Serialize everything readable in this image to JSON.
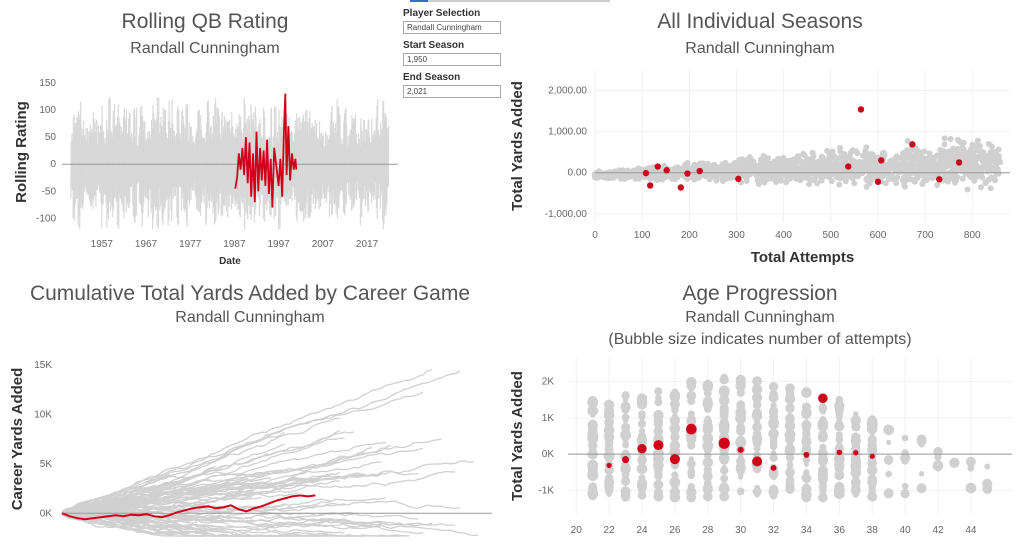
{
  "controls": {
    "player_label": "Player Selection",
    "player_value": "Randall Cunningham",
    "start_label": "Start Season",
    "start_value": "1,950",
    "end_label": "End Season",
    "end_value": "2,021",
    "accent_color": "#3b6cc4"
  },
  "colors": {
    "highlight": "#d0021b",
    "background_series": "#d0d0d0",
    "zero_line": "#999999"
  },
  "chart_data": [
    {
      "id": "rolling",
      "type": "line",
      "title": "Rolling QB Rating",
      "subtitle": "Randall Cunningham",
      "xlabel": "Date",
      "ylabel": "Rolling Rating",
      "xlim": [
        1948,
        2024
      ],
      "ylim": [
        -125,
        170
      ],
      "xticks": [
        "1957",
        "1967",
        "1977",
        "1987",
        "1997",
        "2007",
        "2017"
      ],
      "yticks": [
        "150",
        "100",
        "50",
        "0",
        "-50",
        "-100"
      ],
      "highlight_series": {
        "name": "Randall Cunningham",
        "points": [
          [
            1987.2,
            -45
          ],
          [
            1987.6,
            -25
          ],
          [
            1988.0,
            20
          ],
          [
            1988.4,
            -10
          ],
          [
            1988.8,
            30
          ],
          [
            1989.2,
            -20
          ],
          [
            1989.6,
            50
          ],
          [
            1990.0,
            -35
          ],
          [
            1990.4,
            40
          ],
          [
            1990.8,
            -60
          ],
          [
            1991.2,
            20
          ],
          [
            1991.6,
            -70
          ],
          [
            1992.0,
            60
          ],
          [
            1992.4,
            -50
          ],
          [
            1992.8,
            30
          ],
          [
            1993.2,
            -30
          ],
          [
            1993.6,
            25
          ],
          [
            1994.0,
            -40
          ],
          [
            1994.4,
            45
          ],
          [
            1994.8,
            -55
          ],
          [
            1995.2,
            10
          ],
          [
            1995.6,
            -80
          ],
          [
            1996.0,
            30
          ],
          [
            1997.0,
            -40
          ],
          [
            1997.4,
            10
          ],
          [
            1997.8,
            -60
          ],
          [
            1998.2,
            60
          ],
          [
            1998.5,
            130
          ],
          [
            1998.8,
            -20
          ],
          [
            1999.2,
            70
          ],
          [
            1999.6,
            -30
          ],
          [
            2000.0,
            20
          ],
          [
            2000.4,
            -10
          ],
          [
            2000.8,
            10
          ],
          [
            2001.0,
            -10
          ]
        ]
      }
    },
    {
      "id": "seasons",
      "type": "scatter",
      "title": "All Individual Seasons",
      "subtitle": "Randall Cunningham",
      "xlabel": "Total Attempts",
      "ylabel": "Total Yards Added",
      "xlim": [
        0,
        880
      ],
      "ylim": [
        -1200,
        2500
      ],
      "xticks": [
        0,
        100,
        200,
        300,
        400,
        500,
        600,
        700,
        800
      ],
      "yticks": [
        [
          "2,000.00",
          2000
        ],
        [
          "1,000.00",
          1000
        ],
        [
          "0.00",
          0
        ],
        [
          "-1,000.00",
          -1000
        ]
      ],
      "highlight_points": [
        [
          108,
          -10
        ],
        [
          117,
          -310
        ],
        [
          133,
          150
        ],
        [
          152,
          60
        ],
        [
          182,
          -360
        ],
        [
          196,
          -20
        ],
        [
          222,
          40
        ],
        [
          304,
          -150
        ],
        [
          537,
          150
        ],
        [
          564,
          1540
        ],
        [
          600,
          -220
        ],
        [
          607,
          300
        ],
        [
          673,
          690
        ],
        [
          730,
          -160
        ],
        [
          772,
          250
        ]
      ]
    },
    {
      "id": "cumulative",
      "type": "line",
      "title": "Cumulative Total Yards Added by Career Game",
      "subtitle": "Randall Cunningham",
      "xlabel": "",
      "ylabel": "Career Yards Added",
      "xlim": [
        0,
        280
      ],
      "ylim": [
        -2500,
        17500
      ],
      "yticks": [
        [
          "15K",
          15000
        ],
        [
          "10K",
          10000
        ],
        [
          "5K",
          5000
        ],
        [
          "0K",
          0
        ]
      ],
      "highlight_series": {
        "name": "Randall Cunningham",
        "points": [
          [
            0,
            0
          ],
          [
            5,
            -300
          ],
          [
            10,
            -500
          ],
          [
            15,
            -600
          ],
          [
            20,
            -500
          ],
          [
            25,
            -400
          ],
          [
            30,
            -300
          ],
          [
            35,
            -200
          ],
          [
            40,
            -300
          ],
          [
            45,
            -150
          ],
          [
            50,
            -200
          ],
          [
            55,
            -100
          ],
          [
            60,
            -300
          ],
          [
            65,
            -400
          ],
          [
            70,
            -200
          ],
          [
            75,
            100
          ],
          [
            80,
            300
          ],
          [
            85,
            500
          ],
          [
            90,
            600
          ],
          [
            95,
            700
          ],
          [
            100,
            500
          ],
          [
            105,
            600
          ],
          [
            110,
            800
          ],
          [
            115,
            400
          ],
          [
            120,
            200
          ],
          [
            125,
            500
          ],
          [
            130,
            700
          ],
          [
            135,
            1000
          ],
          [
            140,
            1300
          ],
          [
            145,
            1500
          ],
          [
            150,
            1700
          ],
          [
            155,
            1800
          ],
          [
            160,
            1700
          ],
          [
            165,
            1800
          ]
        ]
      }
    },
    {
      "id": "age",
      "type": "scatter",
      "title": "Age Progression",
      "subtitle": "Randall Cunningham",
      "subtitle2": "(Bubble size indicates number of attempts)",
      "xlabel": "",
      "ylabel": "Total Yards Added",
      "xlim": [
        19.5,
        46.5
      ],
      "ylim": [
        -1650,
        2650
      ],
      "xticks": [
        20,
        22,
        24,
        26,
        28,
        30,
        32,
        34,
        36,
        38,
        40,
        42,
        44
      ],
      "yticks": [
        [
          "2K",
          2000
        ],
        [
          "1K",
          1000
        ],
        [
          "0K",
          0
        ],
        [
          "-1K",
          -1000
        ]
      ],
      "highlight_points": [
        [
          22,
          -310,
          117
        ],
        [
          23,
          -150,
          304
        ],
        [
          24,
          150,
          537
        ],
        [
          25,
          250,
          600
        ],
        [
          26,
          -140,
          607
        ],
        [
          27,
          690,
          673
        ],
        [
          29,
          300,
          730
        ],
        [
          30,
          120,
          222
        ],
        [
          31,
          -200,
          600
        ],
        [
          32,
          -380,
          182
        ],
        [
          34,
          -20,
          196
        ],
        [
          35,
          1540,
          564
        ],
        [
          36,
          50,
          152
        ],
        [
          37,
          40,
          133
        ],
        [
          38,
          -60,
          108
        ]
      ]
    }
  ]
}
